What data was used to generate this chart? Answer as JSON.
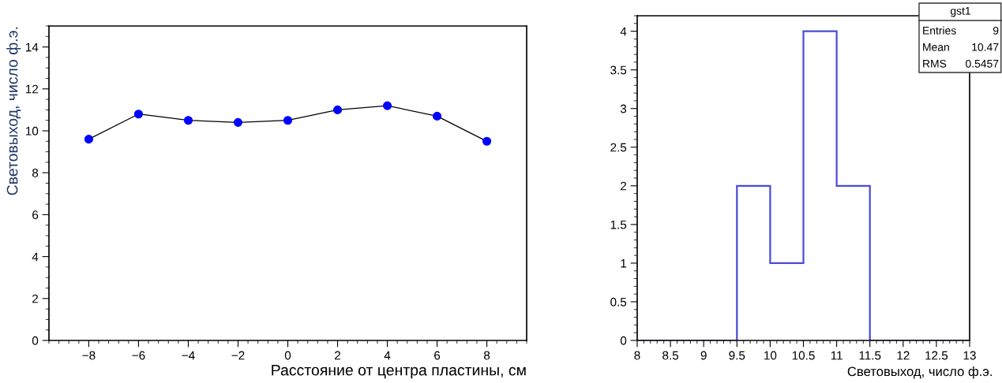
{
  "chart_data": [
    {
      "type": "line",
      "xlabel": "Расстояние от центра пластины, см",
      "ylabel": "Световыход, число ф.э.",
      "x": [
        -8,
        -6,
        -4,
        -2,
        0,
        2,
        4,
        6,
        8
      ],
      "series": [
        {
          "color": "#0000ff",
          "values": [
            9.6,
            10.8,
            10.5,
            10.4,
            10.5,
            11.0,
            11.2,
            10.7,
            9.5
          ]
        }
      ],
      "xlim": [
        -9.6,
        9.6
      ],
      "xticks": [
        -8,
        -6,
        -4,
        -2,
        0,
        2,
        4,
        6,
        8
      ],
      "ylim": [
        0,
        15
      ],
      "yticks": [
        0,
        2,
        4,
        6,
        8,
        10,
        12,
        14
      ],
      "marker": "circle",
      "line_style": "solid",
      "grid": false,
      "legend": false
    },
    {
      "type": "histogram",
      "xlabel": "Световыход, число ф.э.",
      "color": "#4b4bd8",
      "bins": [
        8,
        8.5,
        9,
        9.5,
        10,
        10.5,
        11,
        11.5,
        12,
        12.5,
        13
      ],
      "values": [
        0,
        0,
        0,
        2,
        1,
        4,
        2,
        0,
        0,
        0
      ],
      "xlim": [
        8,
        13
      ],
      "xticks": [
        8,
        8.5,
        9,
        9.5,
        10,
        10.5,
        11,
        11.5,
        12,
        12.5,
        13
      ],
      "ylim": [
        0,
        4.2
      ],
      "yticks": [
        0,
        0.5,
        1,
        1.5,
        2,
        2.5,
        3,
        3.5,
        4
      ],
      "annotations": [
        "gst1",
        "Entries",
        "9",
        "Mean",
        "10.47",
        "RMS",
        "0.5457"
      ],
      "grid": false,
      "legend": false
    }
  ]
}
